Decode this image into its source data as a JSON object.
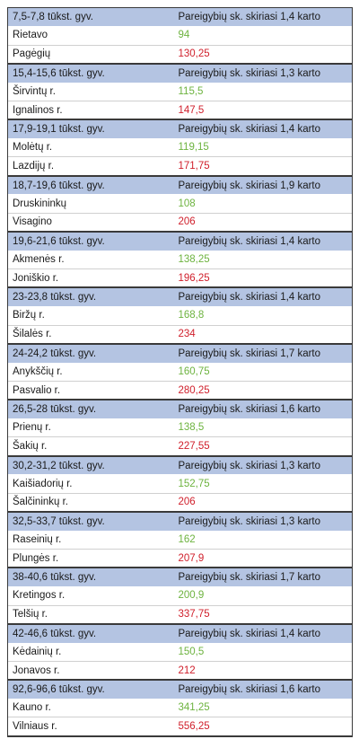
{
  "colors": {
    "header_bg": "#b4c4e2",
    "low": "#6db33f",
    "high": "#d0202c"
  },
  "groups": [
    {
      "range": "7,5-7,8 tūkst. gyv.",
      "note": "Pareigybių sk. skiriasi 1,4 karto",
      "low": {
        "name": "Rietavo",
        "value": "94"
      },
      "high": {
        "name": "Pagėgių",
        "value": "130,25"
      }
    },
    {
      "range": "15,4-15,6 tūkst. gyv.",
      "note": "Pareigybių sk. skiriasi 1,3 karto",
      "low": {
        "name": "Širvintų r.",
        "value": "115,5"
      },
      "high": {
        "name": "Ignalinos r.",
        "value": "147,5"
      }
    },
    {
      "range": "17,9-19,1 tūkst. gyv.",
      "note": "Pareigybių sk. skiriasi 1,4 karto",
      "low": {
        "name": "Molėtų r.",
        "value": "119,15"
      },
      "high": {
        "name": "Lazdijų r.",
        "value": "171,75"
      }
    },
    {
      "range": "18,7-19,6 tūkst. gyv.",
      "note": "Pareigybių sk. skiriasi 1,9 karto",
      "low": {
        "name": "Druskininkų",
        "value": "108"
      },
      "high": {
        "name": "Visagino",
        "value": "206"
      }
    },
    {
      "range": "19,6-21,6 tūkst. gyv.",
      "note": "Pareigybių sk. skiriasi 1,4 karto",
      "low": {
        "name": "Akmenės r.",
        "value": "138,25"
      },
      "high": {
        "name": "Joniškio r.",
        "value": "196,25"
      }
    },
    {
      "range": "23-23,8 tūkst. gyv.",
      "note": "Pareigybių sk. skiriasi 1,4 karto",
      "low": {
        "name": "Biržų r.",
        "value": "168,8"
      },
      "high": {
        "name": "Šilalės r.",
        "value": "234"
      }
    },
    {
      "range": "24-24,2 tūkst. gyv.",
      "note": "Pareigybių sk. skiriasi 1,7 karto",
      "low": {
        "name": "Anykščių r.",
        "value": "160,75"
      },
      "high": {
        "name": "Pasvalio r.",
        "value": "280,25"
      }
    },
    {
      "range": "26,5-28 tūkst. gyv.",
      "note": "Pareigybių sk. skiriasi 1,6 karto",
      "low": {
        "name": "Prienų r.",
        "value": "138,5"
      },
      "high": {
        "name": "Šakių r.",
        "value": "227,55"
      }
    },
    {
      "range": "30,2-31,2 tūkst. gyv.",
      "note": "Pareigybių sk. skiriasi 1,3 karto",
      "low": {
        "name": "Kaišiadorių r.",
        "value": "152,75"
      },
      "high": {
        "name": "Šalčininkų r.",
        "value": "206"
      }
    },
    {
      "range": "32,5-33,7 tūkst. gyv.",
      "note": "Pareigybių sk. skiriasi 1,3 karto",
      "low": {
        "name": "Raseinių r.",
        "value": "162"
      },
      "high": {
        "name": "Plungės r.",
        "value": "207,9"
      }
    },
    {
      "range": "38-40,6 tūkst. gyv.",
      "note": "Pareigybių sk. skiriasi 1,7 karto",
      "low": {
        "name": "Kretingos r.",
        "value": "200,9"
      },
      "high": {
        "name": "Telšių r.",
        "value": "337,75"
      }
    },
    {
      "range": "42-46,6 tūkst. gyv.",
      "note": "Pareigybių sk. skiriasi 1,4 karto",
      "low": {
        "name": "Kėdainių r.",
        "value": "150,5"
      },
      "high": {
        "name": "Jonavos r.",
        "value": "212"
      }
    },
    {
      "range": "92,6-96,6 tūkst. gyv.",
      "note": "Pareigybių sk. skiriasi 1,6 karto",
      "low": {
        "name": "Kauno r.",
        "value": "341,25"
      },
      "high": {
        "name": "Vilniaus r.",
        "value": "556,25"
      }
    }
  ]
}
